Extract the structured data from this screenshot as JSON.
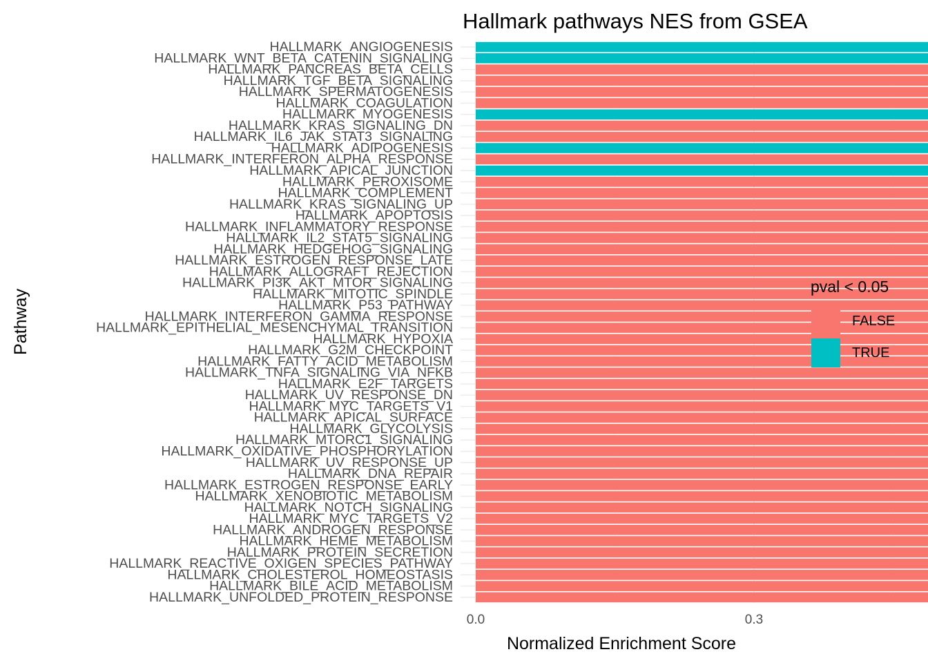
{
  "chart_data": {
    "type": "bar",
    "orientation": "horizontal",
    "title": "Hallmark pathways NES from GSEA",
    "xlabel": "Normalized Enrichment Score",
    "ylabel": "Pathway",
    "xlim": [
      0,
      1.08
    ],
    "xticks": [
      "0.0",
      "0.3",
      "0.6",
      "0.9"
    ],
    "grid": true,
    "legend": {
      "title": "pval < 0.05",
      "placement": "right",
      "entries": [
        {
          "label": "FALSE",
          "color": "#F8766D"
        },
        {
          "label": "TRUE",
          "color": "#00BFC4"
        }
      ]
    },
    "categories": [
      "HALLMARK_ANGIOGENESIS",
      "HALLMARK_WNT_BETA_CATENIN_SIGNALING",
      "HALLMARK_PANCREAS_BETA_CELLS",
      "HALLMARK_TGF_BETA_SIGNALING",
      "HALLMARK_SPERMATOGENESIS",
      "HALLMARK_COAGULATION",
      "HALLMARK_MYOGENESIS",
      "HALLMARK_KRAS_SIGNALING_DN",
      "HALLMARK_IL6_JAK_STAT3_SIGNALING",
      "HALLMARK_ADIPOGENESIS",
      "HALLMARK_INTERFERON_ALPHA_RESPONSE",
      "HALLMARK_APICAL_JUNCTION",
      "HALLMARK_PEROXISOME",
      "HALLMARK_COMPLEMENT",
      "HALLMARK_KRAS_SIGNALING_UP",
      "HALLMARK_APOPTOSIS",
      "HALLMARK_INFLAMMATORY_RESPONSE",
      "HALLMARK_IL2_STAT5_SIGNALING",
      "HALLMARK_HEDGEHOG_SIGNALING",
      "HALLMARK_ESTROGEN_RESPONSE_LATE",
      "HALLMARK_ALLOGRAFT_REJECTION",
      "HALLMARK_PI3K_AKT_MTOR_SIGNALING",
      "HALLMARK_MITOTIC_SPINDLE",
      "HALLMARK_P53_PATHWAY",
      "HALLMARK_INTERFERON_GAMMA_RESPONSE",
      "HALLMARK_EPITHELIAL_MESENCHYMAL_TRANSITION",
      "HALLMARK_HYPOXIA",
      "HALLMARK_G2M_CHECKPOINT",
      "HALLMARK_FATTY_ACID_METABOLISM",
      "HALLMARK_TNFA_SIGNALING_VIA_NFKB",
      "HALLMARK_E2F_TARGETS",
      "HALLMARK_UV_RESPONSE_DN",
      "HALLMARK_MYC_TARGETS_V1",
      "HALLMARK_APICAL_SURFACE",
      "HALLMARK_GLYCOLYSIS",
      "HALLMARK_MTORC1_SIGNALING",
      "HALLMARK_OXIDATIVE_PHOSPHORYLATION",
      "HALLMARK_UV_RESPONSE_UP",
      "HALLMARK_DNA_REPAIR",
      "HALLMARK_ESTROGEN_RESPONSE_EARLY",
      "HALLMARK_XENOBIOTIC_METABOLISM",
      "HALLMARK_NOTCH_SIGNALING",
      "HALLMARK_MYC_TARGETS_V2",
      "HALLMARK_ANDROGEN_RESPONSE",
      "HALLMARK_HEME_METABOLISM",
      "HALLMARK_PROTEIN_SECRETION",
      "HALLMARK_REACTIVE_OXIGEN_SPECIES_PATHWAY",
      "HALLMARK_CHOLESTEROL_HOMEOSTASIS",
      "HALLMARK_BILE_ACID_METABOLISM",
      "HALLMARK_UNFOLDED_PROTEIN_RESPONSE"
    ],
    "values": [
      1.088,
      1.08,
      1.07,
      1.053,
      1.045,
      1.043,
      1.042,
      1.042,
      1.041,
      1.04,
      1.04,
      1.04,
      1.035,
      1.032,
      1.031,
      1.03,
      1.028,
      1.026,
      1.026,
      1.025,
      1.025,
      1.023,
      1.021,
      1.021,
      1.021,
      1.021,
      1.021,
      1.02,
      1.02,
      1.018,
      1.015,
      1.014,
      1.012,
      1.012,
      1.012,
      1.006,
      1.003,
      1.003,
      1.002,
      0.99,
      0.977,
      0.97,
      0.964,
      0.964,
      0.964,
      0.953,
      0.937,
      0.932,
      0.932,
      0.929
    ],
    "significant": [
      true,
      true,
      false,
      false,
      false,
      false,
      true,
      false,
      false,
      true,
      false,
      true,
      false,
      false,
      false,
      false,
      false,
      false,
      false,
      false,
      false,
      false,
      false,
      false,
      false,
      false,
      false,
      false,
      false,
      false,
      false,
      false,
      false,
      false,
      false,
      false,
      false,
      false,
      false,
      false,
      false,
      false,
      false,
      false,
      false,
      false,
      false,
      false,
      false,
      false
    ]
  }
}
